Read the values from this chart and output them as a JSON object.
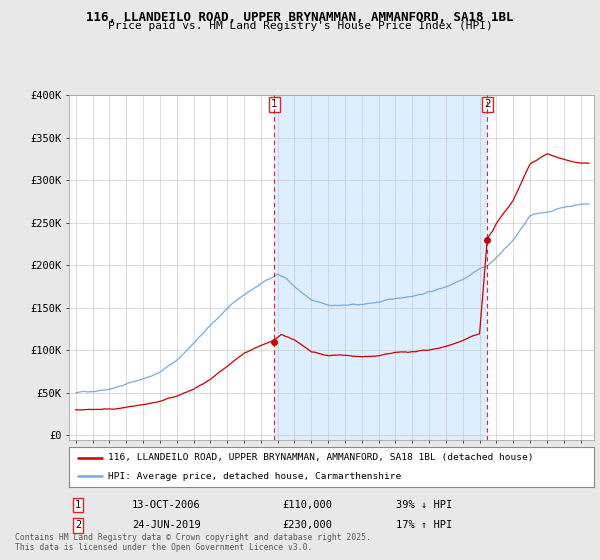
{
  "title1": "116, LLANDEILO ROAD, UPPER BRYNAMMAN, AMMANFORD, SA18 1BL",
  "title2": "Price paid vs. HM Land Registry's House Price Index (HPI)",
  "bg_color": "#e8e8e8",
  "plot_bg_color": "#ffffff",
  "sale1_date": "13-OCT-2006",
  "sale1_price": 110000,
  "sale1_label": "39% ↓ HPI",
  "sale2_date": "24-JUN-2019",
  "sale2_price": 230000,
  "sale2_label": "17% ↑ HPI",
  "legend1": "116, LLANDEILO ROAD, UPPER BRYNAMMAN, AMMANFORD, SA18 1BL (detached house)",
  "legend2": "HPI: Average price, detached house, Carmarthenshire",
  "footer": "Contains HM Land Registry data © Crown copyright and database right 2025.\nThis data is licensed under the Open Government Licence v3.0.",
  "red_color": "#cc0000",
  "blue_color": "#7aaadc",
  "shade_color": "#ddeeff",
  "dashed_red": "#dd2222",
  "ylim_max": 400000,
  "ylim_min": -5000,
  "sale1_x": 2006.79,
  "sale2_x": 2019.46
}
